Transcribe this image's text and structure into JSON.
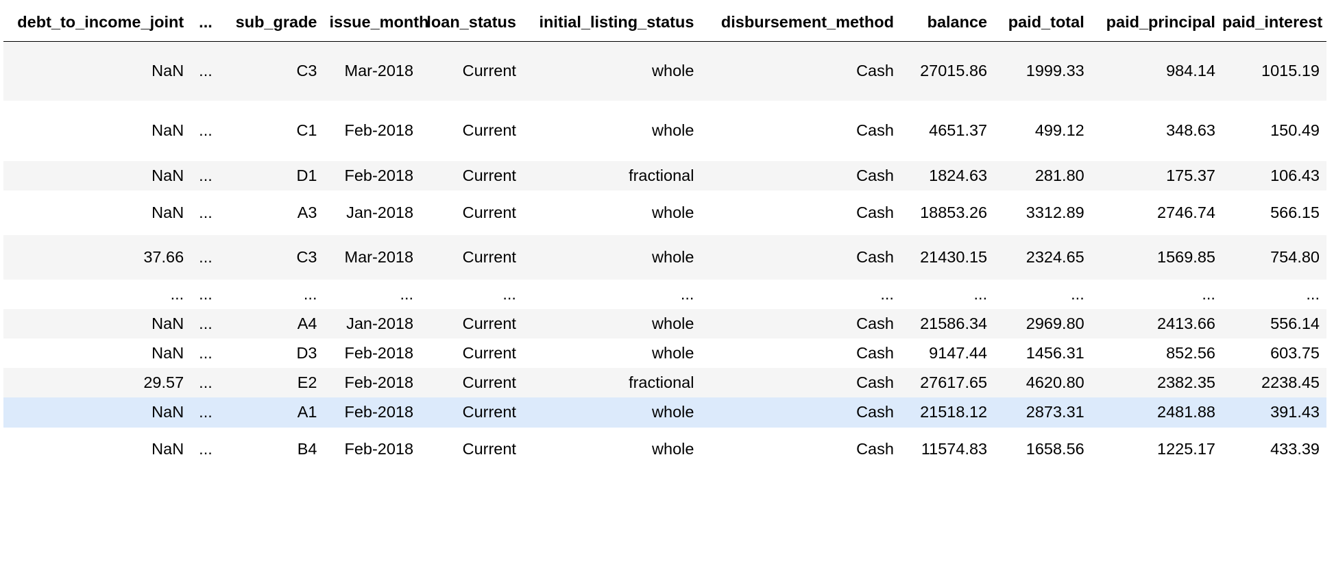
{
  "table": {
    "columns": [
      "debt_to_income_joint",
      "...",
      "sub_grade",
      "issue_month",
      "loan_status",
      "initial_listing_status",
      "disbursement_method",
      "balance",
      "paid_total",
      "paid_principal",
      "paid_interest"
    ],
    "rows": [
      [
        "NaN",
        "...",
        "C3",
        "Mar-2018",
        "Current",
        "whole",
        "Cash",
        "27015.86",
        "1999.33",
        "984.14",
        "1015.19"
      ],
      [
        "NaN",
        "...",
        "C1",
        "Feb-2018",
        "Current",
        "whole",
        "Cash",
        "4651.37",
        "499.12",
        "348.63",
        "150.49"
      ],
      [
        "NaN",
        "...",
        "D1",
        "Feb-2018",
        "Current",
        "fractional",
        "Cash",
        "1824.63",
        "281.80",
        "175.37",
        "106.43"
      ],
      [
        "NaN",
        "...",
        "A3",
        "Jan-2018",
        "Current",
        "whole",
        "Cash",
        "18853.26",
        "3312.89",
        "2746.74",
        "566.15"
      ],
      [
        "37.66",
        "...",
        "C3",
        "Mar-2018",
        "Current",
        "whole",
        "Cash",
        "21430.15",
        "2324.65",
        "1569.85",
        "754.80"
      ],
      [
        "...",
        "...",
        "...",
        "...",
        "...",
        "...",
        "...",
        "...",
        "...",
        "...",
        "..."
      ],
      [
        "NaN",
        "...",
        "A4",
        "Jan-2018",
        "Current",
        "whole",
        "Cash",
        "21586.34",
        "2969.80",
        "2413.66",
        "556.14"
      ],
      [
        "NaN",
        "...",
        "D3",
        "Feb-2018",
        "Current",
        "whole",
        "Cash",
        "9147.44",
        "1456.31",
        "852.56",
        "603.75"
      ],
      [
        "29.57",
        "...",
        "E2",
        "Feb-2018",
        "Current",
        "fractional",
        "Cash",
        "27617.65",
        "4620.80",
        "2382.35",
        "2238.45"
      ],
      [
        "NaN",
        "...",
        "A1",
        "Feb-2018",
        "Current",
        "whole",
        "Cash",
        "21518.12",
        "2873.31",
        "2481.88",
        "391.43"
      ],
      [
        "NaN",
        "...",
        "B4",
        "Feb-2018",
        "Current",
        "whole",
        "Cash",
        "11574.83",
        "1658.56",
        "1225.17",
        "433.39"
      ]
    ]
  },
  "colors": {
    "stripe": "#f5f5f5",
    "hover": "#dceafb",
    "text": "#000000",
    "header_rule": "#000000"
  }
}
